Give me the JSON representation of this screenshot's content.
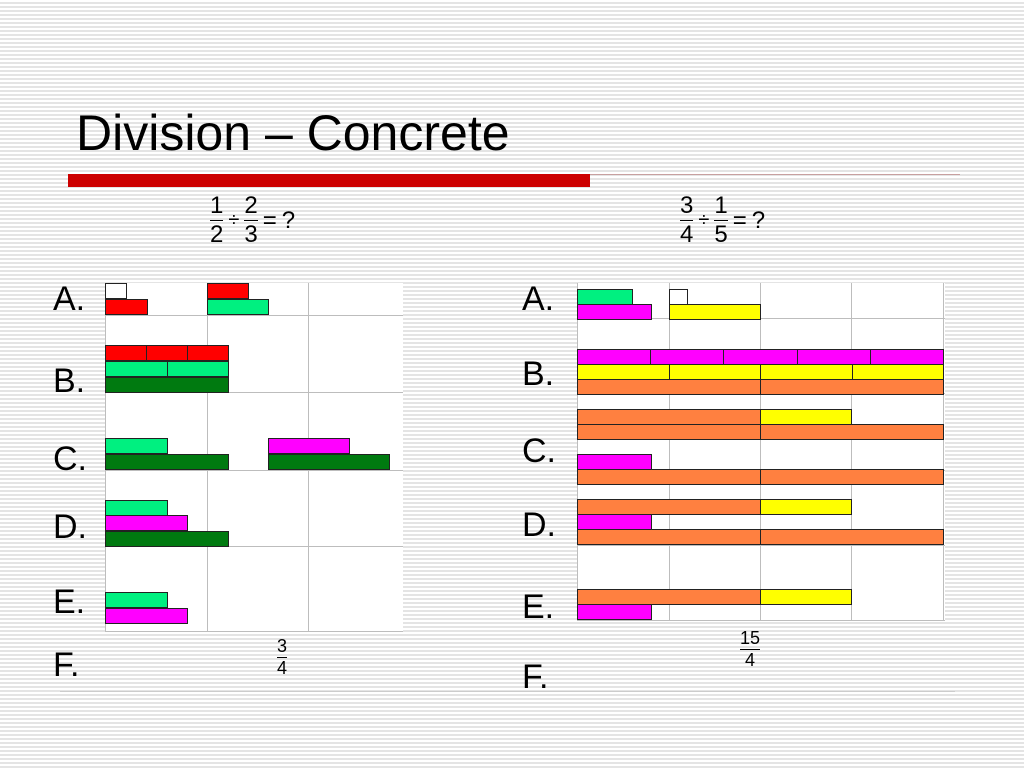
{
  "title": "Division – Concrete",
  "colors": {
    "accent": "#cc0000",
    "red": "#ff0000",
    "light_green": "#00f080",
    "dark_green": "#007a10",
    "magenta": "#ff00ff",
    "yellow": "#ffff00",
    "orange": "#ff8040",
    "white": "#ffffff"
  },
  "left": {
    "equation": {
      "a_num": "1",
      "a_den": "2",
      "op": "÷",
      "b_num": "2",
      "b_den": "3",
      "eq": "=",
      "result": "?"
    },
    "labels": [
      "A.",
      "B.",
      "C.",
      "D.",
      "E.",
      "F."
    ],
    "answer": {
      "num": "3",
      "den": "4"
    }
  },
  "right": {
    "equation": {
      "a_num": "3",
      "a_den": "4",
      "op": "÷",
      "b_num": "1",
      "b_den": "5",
      "eq": "=",
      "result": "?"
    },
    "labels": [
      "A.",
      "B.",
      "C.",
      "D.",
      "E.",
      "F."
    ],
    "answer": {
      "num": "15",
      "den": "4"
    }
  }
}
